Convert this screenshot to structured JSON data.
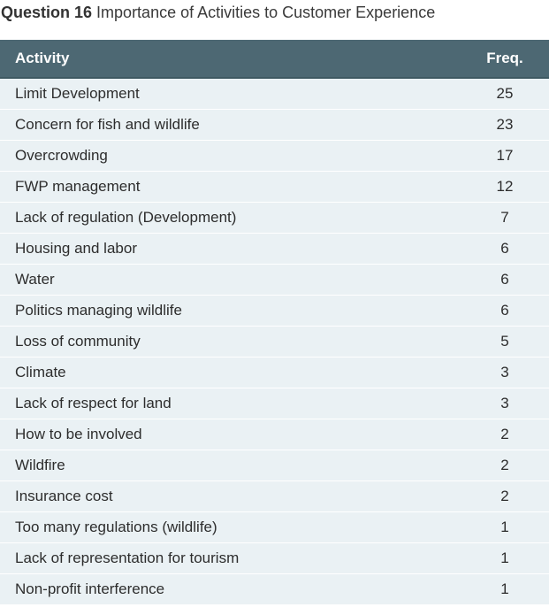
{
  "title": {
    "question": "Question 16",
    "text": "Importance of Activities to Customer Experience"
  },
  "table": {
    "headers": {
      "activity": "Activity",
      "freq": "Freq."
    },
    "rows": [
      {
        "activity": "Limit Development",
        "freq": "25"
      },
      {
        "activity": "Concern for fish and wildlife",
        "freq": "23"
      },
      {
        "activity": "Overcrowding",
        "freq": "17"
      },
      {
        "activity": "FWP management",
        "freq": "12"
      },
      {
        "activity": "Lack of regulation (Development)",
        "freq": "7"
      },
      {
        "activity": "Housing and labor",
        "freq": "6"
      },
      {
        "activity": "Water",
        "freq": "6"
      },
      {
        "activity": "Politics managing wildlife",
        "freq": "6"
      },
      {
        "activity": "Loss of community",
        "freq": "5"
      },
      {
        "activity": "Climate",
        "freq": "3"
      },
      {
        "activity": "Lack of respect for land",
        "freq": "3"
      },
      {
        "activity": "How to be involved",
        "freq": "2"
      },
      {
        "activity": "Wildfire",
        "freq": "2"
      },
      {
        "activity": "Insurance cost",
        "freq": "2"
      },
      {
        "activity": "Too many regulations (wildlife)",
        "freq": "1"
      },
      {
        "activity": "Lack of representation for tourism",
        "freq": "1"
      },
      {
        "activity": "Non-profit interference",
        "freq": "1"
      }
    ]
  },
  "colors": {
    "header_bg": "#4d6873",
    "row_bg": "#eaf1f4",
    "header_text": "#ffffff"
  }
}
